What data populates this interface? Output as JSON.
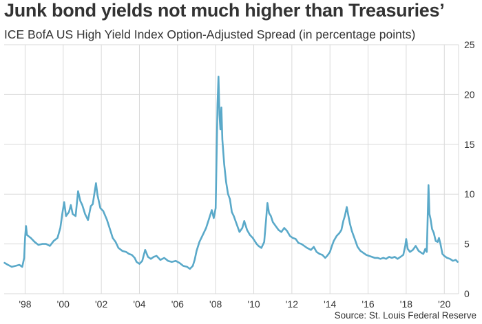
{
  "title": "Junk bond yields not much higher than Treasuries’",
  "subtitle": "ICE BofA US High Yield Index Option-Adjusted Spread (in percentage points)",
  "source": "Source: St. Louis Federal Reserve",
  "colors": {
    "line": "#5aa9c9",
    "grid": "#d9d9d9",
    "text": "#333333"
  },
  "chart_data": {
    "type": "line",
    "title": "Junk bond yields not much higher than Treasuries’",
    "subtitle": "ICE BofA US High Yield Index Option-Adjusted Spread (in percentage points)",
    "xlabel": "",
    "ylabel": "",
    "xlim": [
      1996.9,
      2020.75
    ],
    "ylim": [
      0,
      25
    ],
    "y_ticks": [
      0,
      5,
      10,
      15,
      20,
      25
    ],
    "x_ticks": [
      {
        "x": 1998,
        "label": "'98"
      },
      {
        "x": 2000,
        "label": "'00"
      },
      {
        "x": 2002,
        "label": "'02"
      },
      {
        "x": 2004,
        "label": "'04"
      },
      {
        "x": 2006,
        "label": "'06"
      },
      {
        "x": 2008,
        "label": "'08"
      },
      {
        "x": 2010,
        "label": "'10"
      },
      {
        "x": 2012,
        "label": "'12"
      },
      {
        "x": 2014,
        "label": "'14"
      },
      {
        "x": 2016,
        "label": "'16"
      },
      {
        "x": 2018,
        "label": "'18"
      },
      {
        "x": 2020,
        "label": "'20"
      }
    ],
    "y_axis_side": "right",
    "grid": true,
    "series": [
      {
        "values": [
          [
            1996.92,
            3.1
          ],
          [
            1997.1,
            2.9
          ],
          [
            1997.3,
            2.7
          ],
          [
            1997.5,
            2.8
          ],
          [
            1997.7,
            2.9
          ],
          [
            1997.85,
            2.7
          ],
          [
            1997.95,
            3.6
          ],
          [
            1998.0,
            5.6
          ],
          [
            1998.05,
            6.8
          ],
          [
            1998.1,
            5.9
          ],
          [
            1998.3,
            5.6
          ],
          [
            1998.5,
            5.2
          ],
          [
            1998.7,
            4.9
          ],
          [
            1998.9,
            5.0
          ],
          [
            1999.1,
            5.0
          ],
          [
            1999.3,
            4.8
          ],
          [
            1999.5,
            5.3
          ],
          [
            1999.7,
            5.6
          ],
          [
            1999.85,
            6.6
          ],
          [
            1999.95,
            8.0
          ],
          [
            2000.05,
            9.2
          ],
          [
            2000.15,
            7.8
          ],
          [
            2000.3,
            8.2
          ],
          [
            2000.4,
            8.9
          ],
          [
            2000.5,
            8.0
          ],
          [
            2000.65,
            7.8
          ],
          [
            2000.78,
            10.3
          ],
          [
            2000.9,
            9.3
          ],
          [
            2001.0,
            8.9
          ],
          [
            2001.15,
            8.0
          ],
          [
            2001.3,
            7.4
          ],
          [
            2001.45,
            8.8
          ],
          [
            2001.55,
            9.0
          ],
          [
            2001.65,
            10.2
          ],
          [
            2001.72,
            11.1
          ],
          [
            2001.8,
            9.9
          ],
          [
            2001.95,
            8.6
          ],
          [
            2002.1,
            8.3
          ],
          [
            2002.3,
            7.4
          ],
          [
            2002.45,
            6.5
          ],
          [
            2002.6,
            5.6
          ],
          [
            2002.75,
            5.2
          ],
          [
            2002.9,
            4.6
          ],
          [
            2003.1,
            4.3
          ],
          [
            2003.3,
            4.2
          ],
          [
            2003.45,
            4.0
          ],
          [
            2003.6,
            3.9
          ],
          [
            2003.75,
            3.6
          ],
          [
            2003.85,
            3.2
          ],
          [
            2004.0,
            3.0
          ],
          [
            2004.15,
            3.3
          ],
          [
            2004.3,
            4.4
          ],
          [
            2004.45,
            3.7
          ],
          [
            2004.6,
            3.5
          ],
          [
            2004.75,
            3.7
          ],
          [
            2004.9,
            3.8
          ],
          [
            2005.1,
            3.4
          ],
          [
            2005.3,
            3.6
          ],
          [
            2005.5,
            3.3
          ],
          [
            2005.7,
            3.2
          ],
          [
            2005.9,
            3.3
          ],
          [
            2006.1,
            3.1
          ],
          [
            2006.3,
            2.8
          ],
          [
            2006.5,
            2.7
          ],
          [
            2006.65,
            2.5
          ],
          [
            2006.8,
            2.8
          ],
          [
            2006.9,
            3.4
          ],
          [
            2007.0,
            4.3
          ],
          [
            2007.15,
            5.2
          ],
          [
            2007.35,
            6.0
          ],
          [
            2007.5,
            6.6
          ],
          [
            2007.65,
            7.5
          ],
          [
            2007.8,
            8.4
          ],
          [
            2007.9,
            7.6
          ],
          [
            2008.0,
            8.6
          ],
          [
            2008.05,
            14.0
          ],
          [
            2008.1,
            19.0
          ],
          [
            2008.15,
            21.8
          ],
          [
            2008.2,
            18.0
          ],
          [
            2008.25,
            16.5
          ],
          [
            2008.3,
            18.7
          ],
          [
            2008.35,
            15.5
          ],
          [
            2008.45,
            13.0
          ],
          [
            2008.55,
            11.2
          ],
          [
            2008.65,
            10.0
          ],
          [
            2008.75,
            9.5
          ],
          [
            2008.85,
            8.2
          ],
          [
            2008.95,
            7.8
          ],
          [
            2009.1,
            7.0
          ],
          [
            2009.25,
            6.2
          ],
          [
            2009.4,
            6.6
          ],
          [
            2009.5,
            7.3
          ],
          [
            2009.65,
            6.4
          ],
          [
            2009.8,
            5.9
          ],
          [
            2009.95,
            5.6
          ],
          [
            2010.05,
            5.3
          ],
          [
            2010.15,
            5.0
          ],
          [
            2010.25,
            4.8
          ],
          [
            2010.4,
            4.6
          ],
          [
            2010.55,
            5.2
          ],
          [
            2010.65,
            7.5
          ],
          [
            2010.72,
            9.1
          ],
          [
            2010.8,
            8.1
          ],
          [
            2010.9,
            7.8
          ],
          [
            2011.0,
            7.2
          ],
          [
            2011.15,
            6.8
          ],
          [
            2011.3,
            6.4
          ],
          [
            2011.45,
            6.2
          ],
          [
            2011.6,
            6.6
          ],
          [
            2011.75,
            6.3
          ],
          [
            2011.9,
            5.8
          ],
          [
            2012.05,
            5.6
          ],
          [
            2012.2,
            5.5
          ],
          [
            2012.35,
            5.1
          ],
          [
            2012.5,
            5.0
          ],
          [
            2012.65,
            4.8
          ],
          [
            2012.8,
            4.6
          ],
          [
            2013.0,
            4.4
          ],
          [
            2013.15,
            4.7
          ],
          [
            2013.3,
            4.2
          ],
          [
            2013.45,
            4.0
          ],
          [
            2013.6,
            3.9
          ],
          [
            2013.75,
            3.6
          ],
          [
            2013.85,
            3.8
          ],
          [
            2014.0,
            4.2
          ],
          [
            2014.1,
            4.8
          ],
          [
            2014.2,
            5.3
          ],
          [
            2014.35,
            5.8
          ],
          [
            2014.5,
            6.1
          ],
          [
            2014.6,
            6.4
          ],
          [
            2014.7,
            7.3
          ],
          [
            2014.78,
            7.8
          ],
          [
            2014.88,
            8.7
          ],
          [
            2014.95,
            8.0
          ],
          [
            2015.05,
            7.0
          ],
          [
            2015.15,
            6.3
          ],
          [
            2015.3,
            5.5
          ],
          [
            2015.45,
            4.7
          ],
          [
            2015.6,
            4.3
          ],
          [
            2015.75,
            4.1
          ],
          [
            2015.9,
            3.9
          ],
          [
            2016.05,
            3.8
          ],
          [
            2016.2,
            3.7
          ],
          [
            2016.35,
            3.6
          ],
          [
            2016.5,
            3.6
          ],
          [
            2016.65,
            3.5
          ],
          [
            2016.8,
            3.6
          ],
          [
            2016.95,
            3.5
          ],
          [
            2017.1,
            3.7
          ],
          [
            2017.25,
            3.6
          ],
          [
            2017.4,
            3.7
          ],
          [
            2017.55,
            3.5
          ],
          [
            2017.7,
            3.7
          ],
          [
            2017.85,
            3.9
          ],
          [
            2017.95,
            4.8
          ],
          [
            2018.0,
            5.5
          ],
          [
            2018.08,
            4.5
          ],
          [
            2018.2,
            4.2
          ],
          [
            2018.35,
            4.4
          ],
          [
            2018.5,
            4.8
          ],
          [
            2018.65,
            4.3
          ],
          [
            2018.8,
            4.1
          ],
          [
            2018.9,
            4.0
          ],
          [
            2019.0,
            4.5
          ],
          [
            2019.08,
            4.2
          ],
          [
            2019.12,
            7.0
          ],
          [
            2019.17,
            10.9
          ],
          [
            2019.22,
            8.0
          ],
          [
            2019.28,
            7.5
          ],
          [
            2019.36,
            6.5
          ],
          [
            2019.45,
            6.1
          ],
          [
            2019.55,
            5.3
          ],
          [
            2019.65,
            5.2
          ],
          [
            2019.72,
            5.6
          ],
          [
            2019.8,
            5.0
          ],
          [
            2019.9,
            4.0
          ],
          [
            2020.0,
            3.8
          ],
          [
            2020.15,
            3.6
          ],
          [
            2020.3,
            3.5
          ],
          [
            2020.45,
            3.3
          ],
          [
            2020.6,
            3.4
          ],
          [
            2020.7,
            3.2
          ]
        ]
      }
    ]
  }
}
